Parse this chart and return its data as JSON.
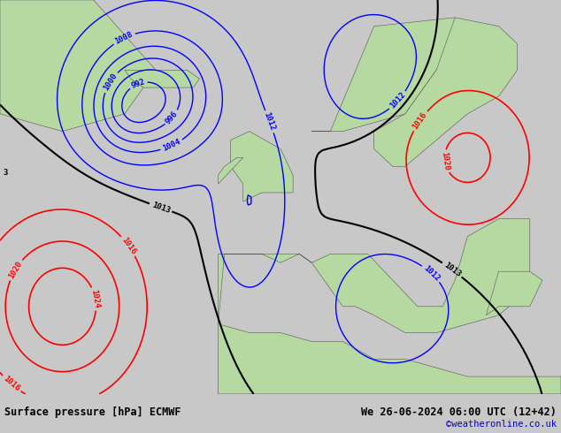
{
  "title_left": "Surface pressure [hPa] ECMWF",
  "title_right": "We 26-06-2024 06:00 UTC (12+42)",
  "copyright": "©weatheronline.co.uk",
  "blue_color": "#0000ff",
  "red_color": "#ff0000",
  "black_color": "#000000",
  "land_color": "#b5d9a0",
  "mountain_color": "#a0a0a0",
  "ocean_color": "#d4dce0",
  "footer_bg": "#c8c8c8",
  "copyright_color": "#0000cc",
  "label_fontsize": 6.5,
  "footer_fontsize": 8.5,
  "copyright_fontsize": 7.5
}
